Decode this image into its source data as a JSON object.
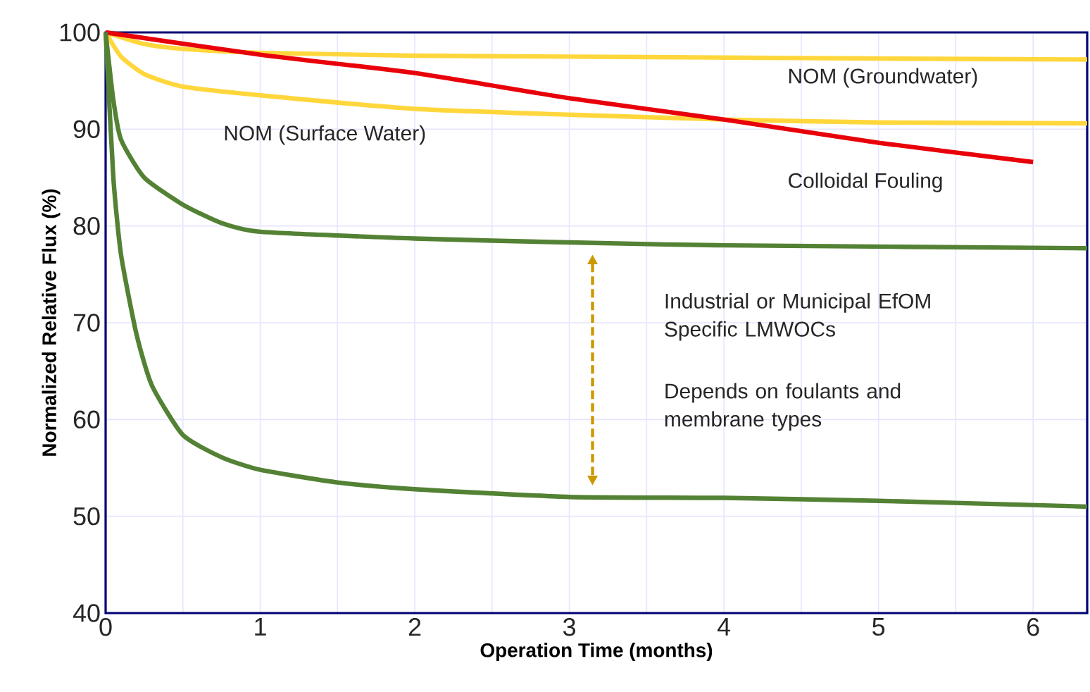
{
  "chart_data": {
    "type": "line",
    "xlabel": "Operation Time (months)",
    "ylabel": "Normalized Relative Flux (%)",
    "xlim": [
      0,
      6.35
    ],
    "ylim": [
      40,
      100
    ],
    "xticks": [
      0,
      {
        "value": 0.5,
        "label": null
      },
      1,
      {
        "value": 1.5,
        "label": null
      },
      2,
      {
        "value": 2.5,
        "label": null
      },
      3,
      {
        "value": 3.5,
        "label": null
      },
      4,
      {
        "value": 4.5,
        "label": null
      },
      5,
      {
        "value": 5.5,
        "label": null
      },
      6
    ],
    "yticks": [
      40,
      50,
      60,
      70,
      80,
      90,
      100
    ],
    "grid": true,
    "marker": "none",
    "line_style": "solid",
    "series": [
      {
        "name": "NOM (Groundwater)",
        "color": "#ffd73c",
        "x": [
          0,
          0.25,
          0.5,
          1,
          2,
          3,
          4,
          5,
          6.35
        ],
        "values": [
          100,
          98.8,
          98.3,
          97.9,
          97.6,
          97.5,
          97.4,
          97.3,
          97.2
        ]
      },
      {
        "name": "NOM (Surface Water)",
        "color": "#ffd73c",
        "x": [
          0,
          0.1,
          0.25,
          0.5,
          1,
          2,
          3,
          4,
          5,
          6.35
        ],
        "values": [
          100,
          97.5,
          95.7,
          94.4,
          93.5,
          92.1,
          91.5,
          91.0,
          90.7,
          90.6
        ]
      },
      {
        "name": "Colloidal Fouling",
        "color": "#e8000a",
        "x": [
          0,
          1,
          2,
          3,
          4,
          5,
          6
        ],
        "values": [
          100,
          97.7,
          95.8,
          93.2,
          91.0,
          88.6,
          86.6
        ]
      },
      {
        "color": "#548235",
        "x": [
          0,
          0.05,
          0.1,
          0.25,
          0.5,
          0.75,
          1,
          2,
          3,
          4,
          6.35
        ],
        "values": [
          100,
          93,
          88.9,
          85.0,
          82.2,
          80.3,
          79.4,
          78.7,
          78.3,
          78.0,
          77.7
        ]
      },
      {
        "color": "#548235",
        "x": [
          0,
          0.05,
          0.1,
          0.2,
          0.3,
          0.5,
          0.75,
          1,
          1.5,
          2,
          3,
          4,
          5,
          6.35
        ],
        "values": [
          100,
          85,
          77,
          68.8,
          63.5,
          58.4,
          56.1,
          54.8,
          53.5,
          52.8,
          52.0,
          51.9,
          51.6,
          51.0
        ]
      }
    ],
    "annotations": [
      "Industrial or Municipal EfOM Specific LMWOCs",
      "Depends on foulants and membrane types"
    ]
  }
}
